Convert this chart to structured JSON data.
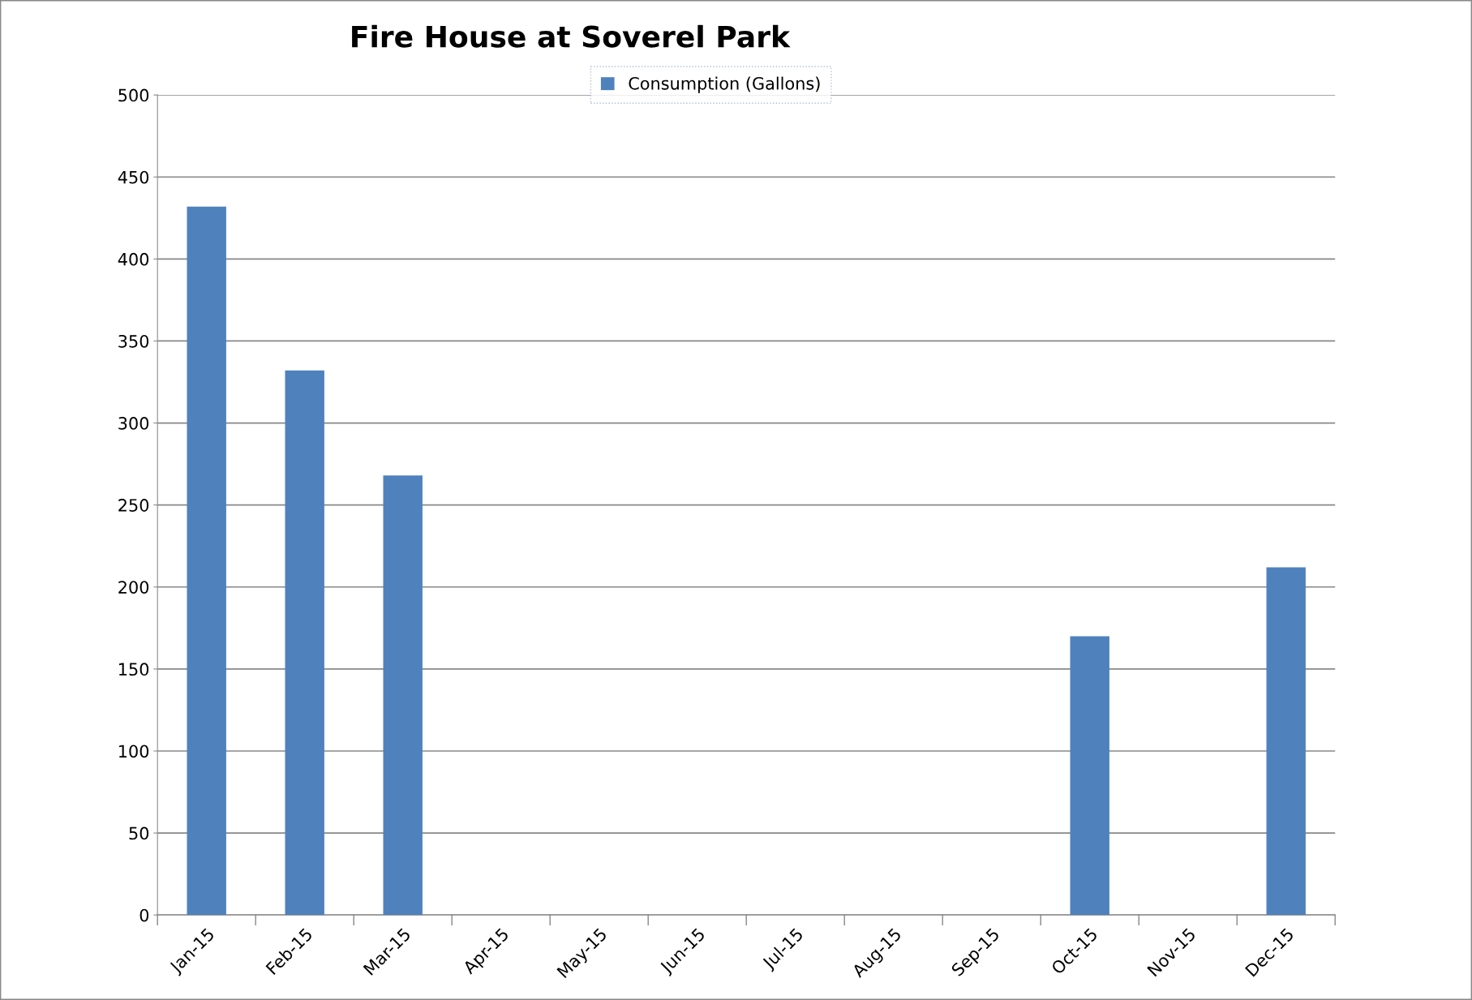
{
  "chart_data": {
    "type": "bar",
    "title": "Fire House at Soverel Park",
    "categories": [
      "Jan-15",
      "Feb-15",
      "Mar-15",
      "Apr-15",
      "May-15",
      "Jun-15",
      "Jul-15",
      "Aug-15",
      "Sep-15",
      "Oct-15",
      "Nov-15",
      "Dec-15"
    ],
    "series": [
      {
        "name": "Consumption (Gallons)",
        "color": "#4f81bd",
        "values": [
          432,
          332,
          268,
          0,
          0,
          0,
          0,
          0,
          0,
          170,
          0,
          212
        ]
      }
    ],
    "ylim": [
      0,
      500
    ],
    "yticks": [
      0,
      50,
      100,
      150,
      200,
      250,
      300,
      350,
      400,
      450,
      500
    ],
    "grid": "y",
    "legend": "top"
  }
}
